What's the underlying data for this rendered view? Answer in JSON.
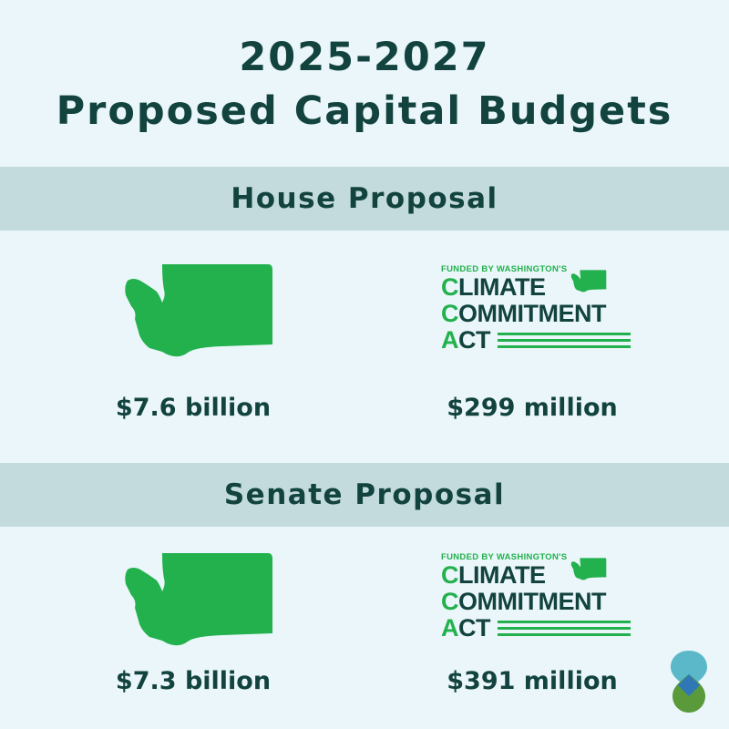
{
  "title": {
    "line1": "2025-2027",
    "line2": "Proposed Capital Budgets"
  },
  "house": {
    "heading": "House Proposal",
    "total_amount": "$7.6 billion",
    "cca_amount": "$299 million"
  },
  "senate": {
    "heading": "Senate Proposal",
    "total_amount": "$7.3 billion",
    "cca_amount": "$391 million"
  },
  "cca_logo": {
    "funded_by": "FUNDED BY WASHINGTON'S",
    "line1_initial": "C",
    "line1_rest": "LIMATE",
    "line2_initial": "C",
    "line2_rest": "OMMITMENT",
    "line3_initial": "A",
    "line3_rest": "CT"
  },
  "colors": {
    "background": "#eaf6fa",
    "band": "#c3dbdc",
    "text_dark_green": "#12433e",
    "state_green": "#22b14c",
    "logo_teal": "#5bb8c9",
    "logo_blue": "#2f78b5",
    "logo_green": "#5a9a3a"
  },
  "icons": {
    "state_shape": "washington-state-icon",
    "corner_logo": "drop-logo-icon"
  }
}
